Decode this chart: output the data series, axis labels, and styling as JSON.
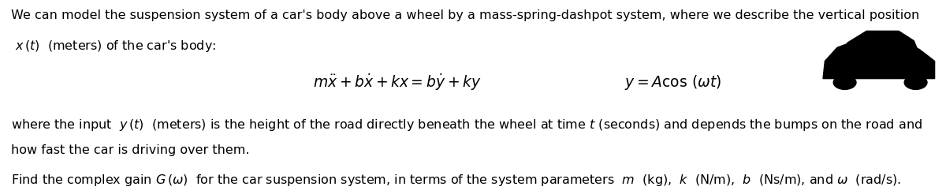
{
  "bg_color": "#ffffff",
  "text_color": "#000000",
  "fig_width": 12.0,
  "fig_height": 2.46,
  "dpi": 100,
  "font_size_main": 11.5,
  "font_size_eq": 13.5
}
